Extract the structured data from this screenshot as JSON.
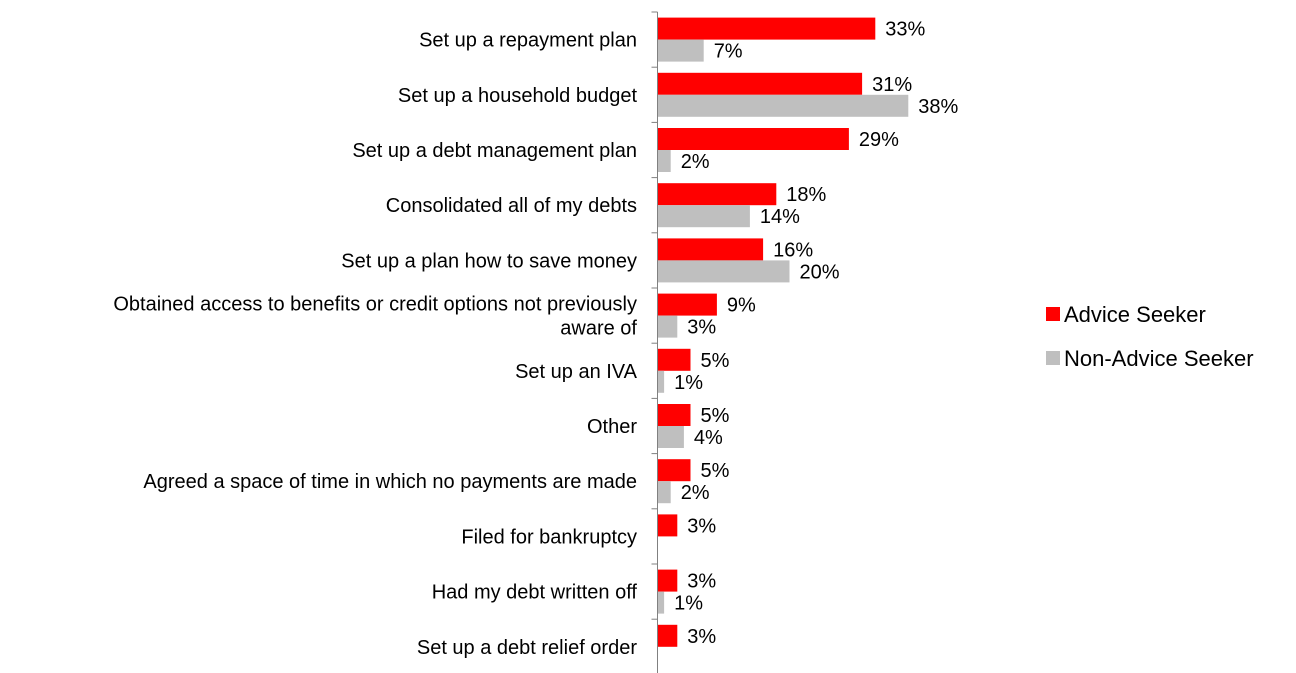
{
  "chart_data": {
    "type": "bar",
    "orientation": "horizontal",
    "categories": [
      [
        "Set up a repayment plan"
      ],
      [
        "Set up a household budget"
      ],
      [
        "Set up a debt management plan"
      ],
      [
        "Consolidated all of my debts"
      ],
      [
        "Set up a plan how to save money"
      ],
      [
        "Obtained access to benefits or credit options not previously",
        "aware of"
      ],
      [
        "Set up an IVA"
      ],
      [
        "Other"
      ],
      [
        "Agreed a space of time in which no payments are made"
      ],
      [
        "Filed for bankruptcy"
      ],
      [
        "Had my debt written off"
      ],
      [
        "Set up a debt relief order"
      ]
    ],
    "series": [
      {
        "name": "Advice Seeker",
        "color": "#ff0000",
        "values": [
          33,
          31,
          29,
          18,
          16,
          9,
          5,
          5,
          5,
          3,
          3,
          3
        ],
        "labels": [
          "33%",
          "31%",
          "29%",
          "18%",
          "16%",
          "9%",
          "5%",
          "5%",
          "5%",
          "3%",
          "3%",
          "3%"
        ]
      },
      {
        "name": "Non-Advice Seeker",
        "color": "#bfbfbf",
        "values": [
          7,
          38,
          2,
          14,
          20,
          3,
          1,
          4,
          2,
          null,
          1,
          null
        ],
        "labels": [
          "7%",
          "38%",
          "2%",
          "14%",
          "20%",
          "3%",
          "1%",
          "4%",
          "2%",
          "",
          "1%",
          ""
        ]
      }
    ],
    "value_unit": "%",
    "legend_position": "right",
    "grid": false,
    "axis_color": "#808080"
  }
}
